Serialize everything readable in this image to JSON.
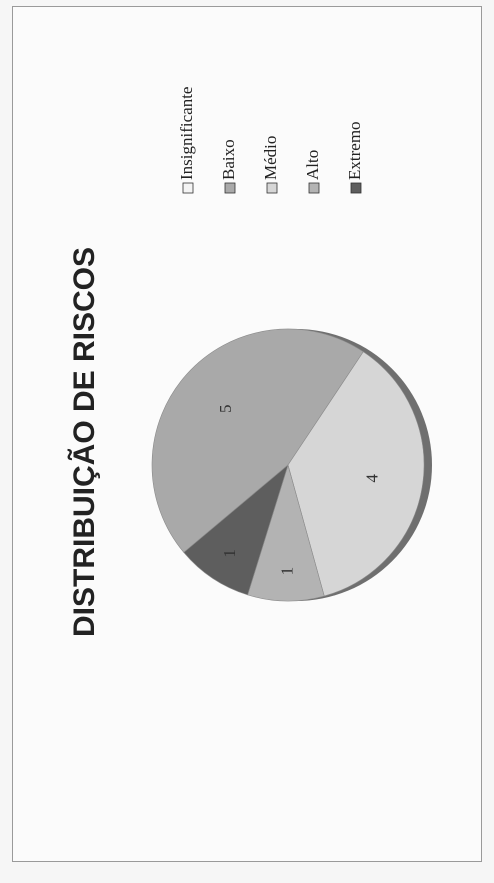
{
  "chart_data": {
    "type": "pie",
    "title": "DISTRIBUIÇÃO DE RISCOS",
    "categories": [
      "Insignificante",
      "Baixo",
      "Médio",
      "Alto",
      "Extremo"
    ],
    "values": [
      0,
      5,
      4,
      1,
      1
    ],
    "data_labels": [
      "",
      "5",
      "4",
      "1",
      "1"
    ],
    "colors": [
      "#f4f4f4",
      "#a9a9a9",
      "#d6d6d6",
      "#b3b3b3",
      "#5e5e5e"
    ],
    "legend": "right"
  }
}
